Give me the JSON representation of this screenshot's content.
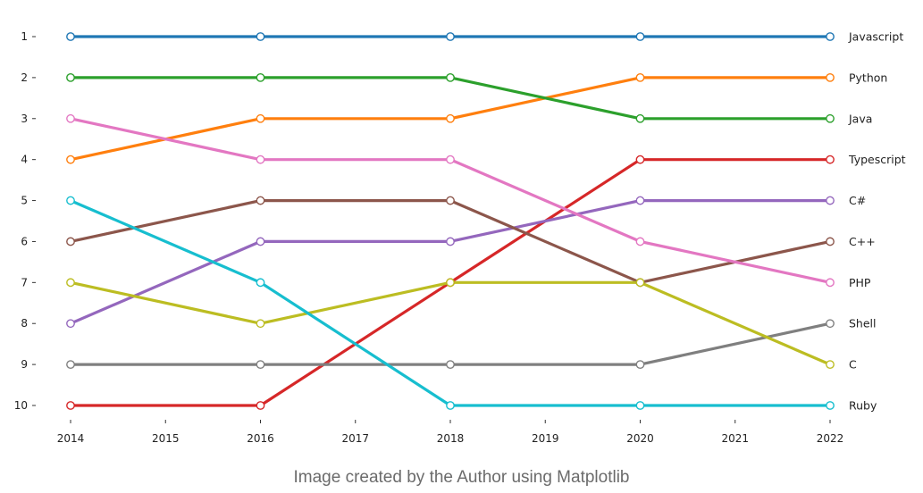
{
  "chart_data": {
    "type": "line",
    "title": "",
    "xlabel": "",
    "ylabel": "",
    "x": [
      2014,
      2016,
      2018,
      2020,
      2022
    ],
    "x_ticks": [
      "2014",
      "2015",
      "2016",
      "2017",
      "2018",
      "2019",
      "2020",
      "2021",
      "2022"
    ],
    "y_ticks": [
      "1",
      "2",
      "3",
      "4",
      "5",
      "6",
      "7",
      "8",
      "9",
      "10"
    ],
    "xlim": [
      2014,
      2022
    ],
    "ylim": [
      10,
      1
    ],
    "grid": false,
    "legend": "right-edge labels",
    "series": [
      {
        "name": "Javascript",
        "color": "#1f77b4",
        "values": [
          1,
          1,
          1,
          1,
          1
        ]
      },
      {
        "name": "Python",
        "color": "#ff7f0e",
        "values": [
          4,
          3,
          3,
          2,
          2
        ]
      },
      {
        "name": "Java",
        "color": "#2ca02c",
        "values": [
          2,
          2,
          2,
          3,
          3
        ]
      },
      {
        "name": "Typescript",
        "color": "#d62728",
        "values": [
          10,
          10,
          7,
          4,
          4
        ]
      },
      {
        "name": "C#",
        "color": "#9467bd",
        "values": [
          8,
          6,
          6,
          5,
          5
        ]
      },
      {
        "name": "C++",
        "color": "#8c564b",
        "values": [
          6,
          5,
          5,
          7,
          6
        ]
      },
      {
        "name": "PHP",
        "color": "#e377c2",
        "values": [
          3,
          4,
          4,
          6,
          7
        ]
      },
      {
        "name": "Shell",
        "color": "#7f7f7f",
        "values": [
          9,
          9,
          9,
          9,
          8
        ]
      },
      {
        "name": "C",
        "color": "#bcbd22",
        "values": [
          7,
          8,
          7,
          7,
          9
        ]
      },
      {
        "name": "Ruby",
        "color": "#17becf",
        "values": [
          5,
          7,
          10,
          10,
          10
        ]
      }
    ]
  },
  "caption": "Image created by the Author using Matplotlib"
}
